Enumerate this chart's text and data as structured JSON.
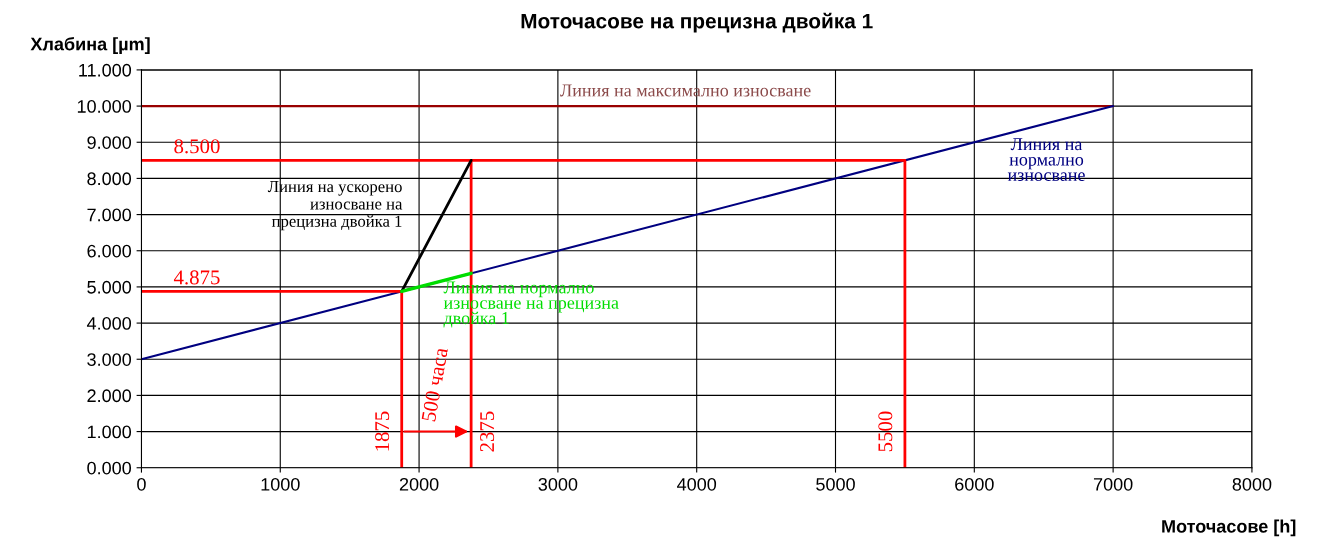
{
  "chart_data": {
    "type": "line",
    "title": "Моточасове на прецизна двойка 1",
    "xlabel": "Моточасове [h]",
    "ylabel": "Хлабина [µm]",
    "xlim": [
      0,
      8000
    ],
    "xticks": [
      0,
      1000,
      2000,
      3000,
      4000,
      5000,
      6000,
      7000,
      8000
    ],
    "ylim": [
      0,
      11
    ],
    "yticks": [
      {
        "value": 0,
        "label": "0.000"
      },
      {
        "value": 1,
        "label": "1.000"
      },
      {
        "value": 2,
        "label": "2.000"
      },
      {
        "value": 3,
        "label": "3.000"
      },
      {
        "value": 4,
        "label": "4.000"
      },
      {
        "value": 5,
        "label": "5.000"
      },
      {
        "value": 6,
        "label": "6.000"
      },
      {
        "value": 7,
        "label": "7.000"
      },
      {
        "value": 8,
        "label": "8.000"
      },
      {
        "value": 9,
        "label": "9.000"
      },
      {
        "value": 10,
        "label": "10.000"
      },
      {
        "value": 11,
        "label": "11.000"
      }
    ],
    "grid": true,
    "legend": false,
    "marker": "none",
    "line_style": "solid",
    "series": [
      {
        "name": "Линия на максимално износване",
        "color": "#990000",
        "x": [
          0,
          7000
        ],
        "values": [
          10,
          10
        ]
      },
      {
        "name": "Линия на\nнормално\nизносване",
        "color": "#000080",
        "x": [
          0,
          7000
        ],
        "values": [
          3,
          10
        ]
      },
      {
        "color": "#ff0000",
        "x": [
          0,
          5500,
          5500
        ],
        "values": [
          8.5,
          8.5,
          0
        ]
      },
      {
        "color": "#ff0000",
        "x": [
          2375,
          2375
        ],
        "values": [
          8.5,
          0
        ]
      },
      {
        "color": "#ff0000",
        "x": [
          0,
          1875,
          1875
        ],
        "values": [
          4.875,
          4.875,
          0
        ]
      },
      {
        "name": "Линия на ускорено\nизносване на\nпрецизна двойка 1",
        "color": "#000000",
        "x": [
          1875,
          2375
        ],
        "values": [
          4.875,
          8.5
        ]
      },
      {
        "name": "Линия на нормално\nизносване на прецизна\nдвойка 1",
        "color": "#00dd00",
        "x": [
          1875,
          2375
        ],
        "values": [
          4.875,
          5.375
        ]
      }
    ],
    "annotations": [
      {
        "text": "8.500",
        "x": 400,
        "y": 8.5
      },
      {
        "text": "4.875",
        "x": 400,
        "y": 4.875
      },
      {
        "text": "1875",
        "x": 1875,
        "y": 1
      },
      {
        "text": "2375",
        "x": 2375,
        "y": 1
      },
      {
        "text": "5500",
        "x": 5500,
        "y": 1
      },
      "500 часа"
    ]
  }
}
